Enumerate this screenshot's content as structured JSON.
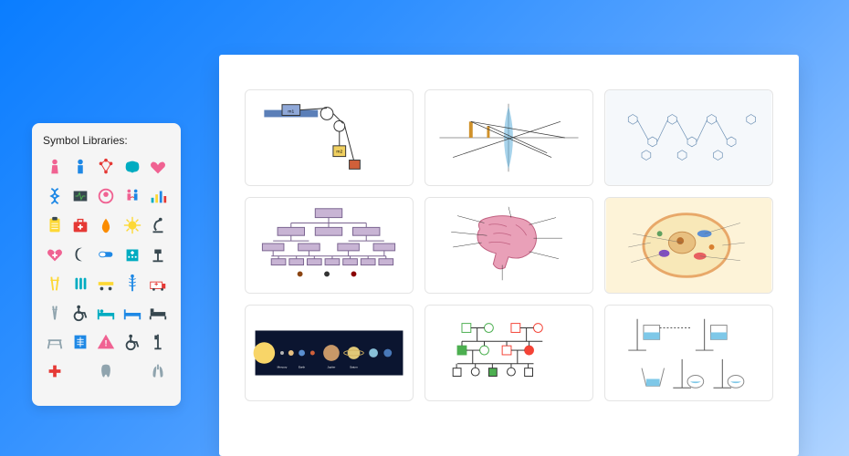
{
  "symbolPanel": {
    "title": "Symbol Libraries:",
    "iconColors": {
      "pink": "#f06292",
      "blue": "#1e88e5",
      "teal": "#00acc1",
      "red": "#e53935",
      "yellow": "#fdd835",
      "dark": "#37474f",
      "gray": "#90a4ae",
      "green": "#43a047",
      "purple": "#8e24aa",
      "orange": "#fb8c00"
    },
    "icons": [
      {
        "name": "person-female",
        "c": "#f06292"
      },
      {
        "name": "person-male",
        "c": "#1e88e5"
      },
      {
        "name": "molecule",
        "c": "#e53935"
      },
      {
        "name": "brain",
        "c": "#00acc1"
      },
      {
        "name": "heart",
        "c": "#f06292"
      },
      {
        "name": "dna",
        "c": "#1e88e5"
      },
      {
        "name": "monitor",
        "c": "#37474f"
      },
      {
        "name": "fetus",
        "c": "#f06292"
      },
      {
        "name": "couple",
        "c": "#f06292"
      },
      {
        "name": "chart",
        "c": "#00acc1"
      },
      {
        "name": "clipboard",
        "c": "#fdd835"
      },
      {
        "name": "medkit",
        "c": "#e53935"
      },
      {
        "name": "blood-drop",
        "c": "#fb8c00"
      },
      {
        "name": "virus",
        "c": "#fdd835"
      },
      {
        "name": "microscope",
        "c": "#37474f"
      },
      {
        "name": "heart-plus",
        "c": "#f06292"
      },
      {
        "name": "moon",
        "c": "#37474f"
      },
      {
        "name": "pill",
        "c": "#1e88e5"
      },
      {
        "name": "hospital",
        "c": "#00acc1"
      },
      {
        "name": "scope",
        "c": "#37474f"
      },
      {
        "name": "crutches",
        "c": "#fdd835"
      },
      {
        "name": "tubes",
        "c": "#00acc1"
      },
      {
        "name": "stretcher",
        "c": "#fdd835"
      },
      {
        "name": "caduceus",
        "c": "#1e88e5"
      },
      {
        "name": "ambulance",
        "c": "#e53935"
      },
      {
        "name": "crutch",
        "c": "#90a4ae"
      },
      {
        "name": "wheelchair",
        "c": "#37474f"
      },
      {
        "name": "bed1",
        "c": "#00acc1"
      },
      {
        "name": "bed2",
        "c": "#1e88e5"
      },
      {
        "name": "bed3",
        "c": "#37474f"
      },
      {
        "name": "table",
        "c": "#90a4ae"
      },
      {
        "name": "xray",
        "c": "#1e88e5"
      },
      {
        "name": "hazard",
        "c": "#f06292"
      },
      {
        "name": "wheelchair2",
        "c": "#37474f"
      },
      {
        "name": "iv-stand",
        "c": "#37474f"
      },
      {
        "name": "cross",
        "c": "#e53935"
      },
      {
        "name": "blank1",
        "c": "#fff"
      },
      {
        "name": "tooth",
        "c": "#90a4ae"
      },
      {
        "name": "blank2",
        "c": "#fff"
      },
      {
        "name": "lungs",
        "c": "#90a4ae"
      }
    ]
  },
  "templates": [
    {
      "name": "pulley-physics",
      "bg": "#ffffff",
      "accent": "#3f51b5",
      "surface": "#5b7fb8"
    },
    {
      "name": "lens-optics",
      "bg": "#ffffff",
      "accent": "#4fa8d8",
      "beam": "#d0912a"
    },
    {
      "name": "chemistry-reaction",
      "bg": "#f5f8fb",
      "accent": "#6b8fb3"
    },
    {
      "name": "tree-diagram",
      "bg": "#ffffff",
      "box": "#c8b4d4",
      "line": "#7a6490"
    },
    {
      "name": "brain-anatomy",
      "bg": "#ffffff",
      "brain": "#e9a0b8",
      "lines": "#333"
    },
    {
      "name": "cell-diagram",
      "bg": "#fdf3d8",
      "membrane": "#e8a869",
      "organelle": "#5b8fd4"
    },
    {
      "name": "solar-system",
      "bg": "#0b1530",
      "sun": "#f8d568",
      "planets": [
        "#b5b5b5",
        "#e8c080",
        "#5a8fd0",
        "#d0603a",
        "#c89868",
        "#e0c878",
        "#88c0d8",
        "#4878b8"
      ]
    },
    {
      "name": "circuit-pedigree",
      "bg": "#ffffff",
      "green": "#4caf50",
      "red": "#f44336",
      "line": "#333"
    },
    {
      "name": "lab-setup",
      "bg": "#ffffff",
      "liquid": "#7ec8e8",
      "stand": "#555"
    }
  ]
}
